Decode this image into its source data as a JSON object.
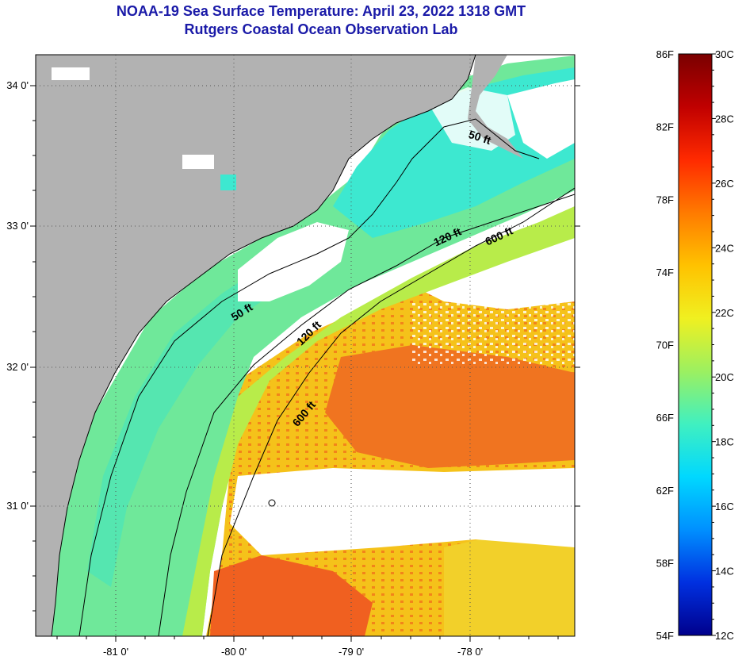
{
  "title": {
    "line1": "NOAA-19 Sea Surface Temperature:  April 23, 2022 1318 GMT",
    "line2": "Rutgers Coastal Ocean Observation Lab"
  },
  "map": {
    "lat_labels": [
      "34 0'",
      "33 0'",
      "32 0'",
      "31 0'"
    ],
    "lon_labels": [
      "-81 0'",
      "-80 0'",
      "-79 0'",
      "-78 0'"
    ],
    "isobaths": [
      "50 ft",
      "120 ft",
      "600 ft",
      "50 ft",
      "120 ft",
      "600 ft"
    ],
    "colors": {
      "land": "#b2b2b2",
      "cloud": "#ffffff",
      "cool_shelf": "#3de8d0",
      "shelf": "#6fe89a",
      "mid_shelf": "#b8ec4a",
      "warm": "#f5c21a",
      "gulf_stream": "#f07420"
    }
  },
  "colorbar": {
    "f_labels": [
      "86F",
      "82F",
      "78F",
      "74F",
      "70F",
      "66F",
      "62F",
      "58F",
      "54F"
    ],
    "c_labels": [
      "30C",
      "28C",
      "26C",
      "24C",
      "22C",
      "20C",
      "18C",
      "16C",
      "14C",
      "12C"
    ],
    "stops": [
      "#7a0000",
      "#c00000",
      "#ff2a00",
      "#ff7a00",
      "#ffc200",
      "#f0f020",
      "#9cf060",
      "#40f0c0",
      "#00d8ff",
      "#0090ff",
      "#0030e0",
      "#00008c"
    ]
  }
}
